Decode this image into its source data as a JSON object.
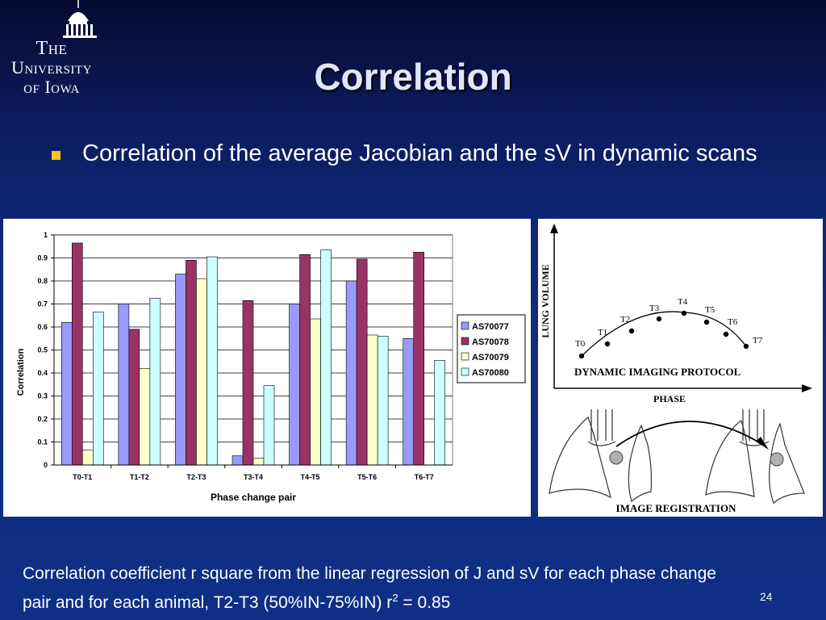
{
  "logo": {
    "line1": "The",
    "line2": "University",
    "line3": "of Iowa"
  },
  "slide": {
    "title": "Correlation",
    "bullet": "Correlation of the average Jacobian and the sV in dynamic scans",
    "caption_part1": "Correlation coefficient r square from the linear regression of J and sV for each phase change pair  and for each animal, T2-T3 (50%IN-75%IN) r",
    "caption_sup": "2",
    "caption_part2": " = 0.85",
    "page_number": "24"
  },
  "colors": {
    "background": "#0f2a7a",
    "bullet": "#f5c518",
    "series": [
      "#9999ff",
      "#993366",
      "#ffffcc",
      "#ccffff"
    ]
  },
  "chart_data": {
    "type": "bar",
    "categories": [
      "T0-T1",
      "T1-T2",
      "T2-T3",
      "T3-T4",
      "T4-T5",
      "T5-T6",
      "T6-T7"
    ],
    "series": [
      {
        "name": "AS70077",
        "values": [
          0.62,
          0.7,
          0.83,
          0.04,
          0.7,
          0.8,
          0.55
        ]
      },
      {
        "name": "AS70078",
        "values": [
          0.965,
          0.59,
          0.89,
          0.715,
          0.915,
          0.895,
          0.925
        ]
      },
      {
        "name": "AS70079",
        "values": [
          0.065,
          0.42,
          0.81,
          0.03,
          0.635,
          0.565,
          0.0
        ]
      },
      {
        "name": "AS70080",
        "values": [
          0.665,
          0.725,
          0.905,
          0.345,
          0.935,
          0.56,
          0.455
        ]
      }
    ],
    "title": "",
    "xlabel": "Phase change pair",
    "ylabel": "Correlation",
    "ylim": [
      0,
      1
    ],
    "yticks": [
      "0",
      "0.1",
      "0.2",
      "0.3",
      "0.4",
      "0.5",
      "0.6",
      "0.7",
      "0.8",
      "0.9",
      "1"
    ],
    "grid": true,
    "legend": "right"
  },
  "diagram": {
    "y_axis_label": "LUNG VOLUME",
    "x_axis_label": "PHASE",
    "protocol_label": "DYNAMIC IMAGING PROTOCOL",
    "registration_label": "IMAGE REGISTRATION",
    "points": [
      "T0",
      "T1",
      "T2",
      "T3",
      "T4",
      "T5",
      "T6",
      "T7"
    ]
  }
}
